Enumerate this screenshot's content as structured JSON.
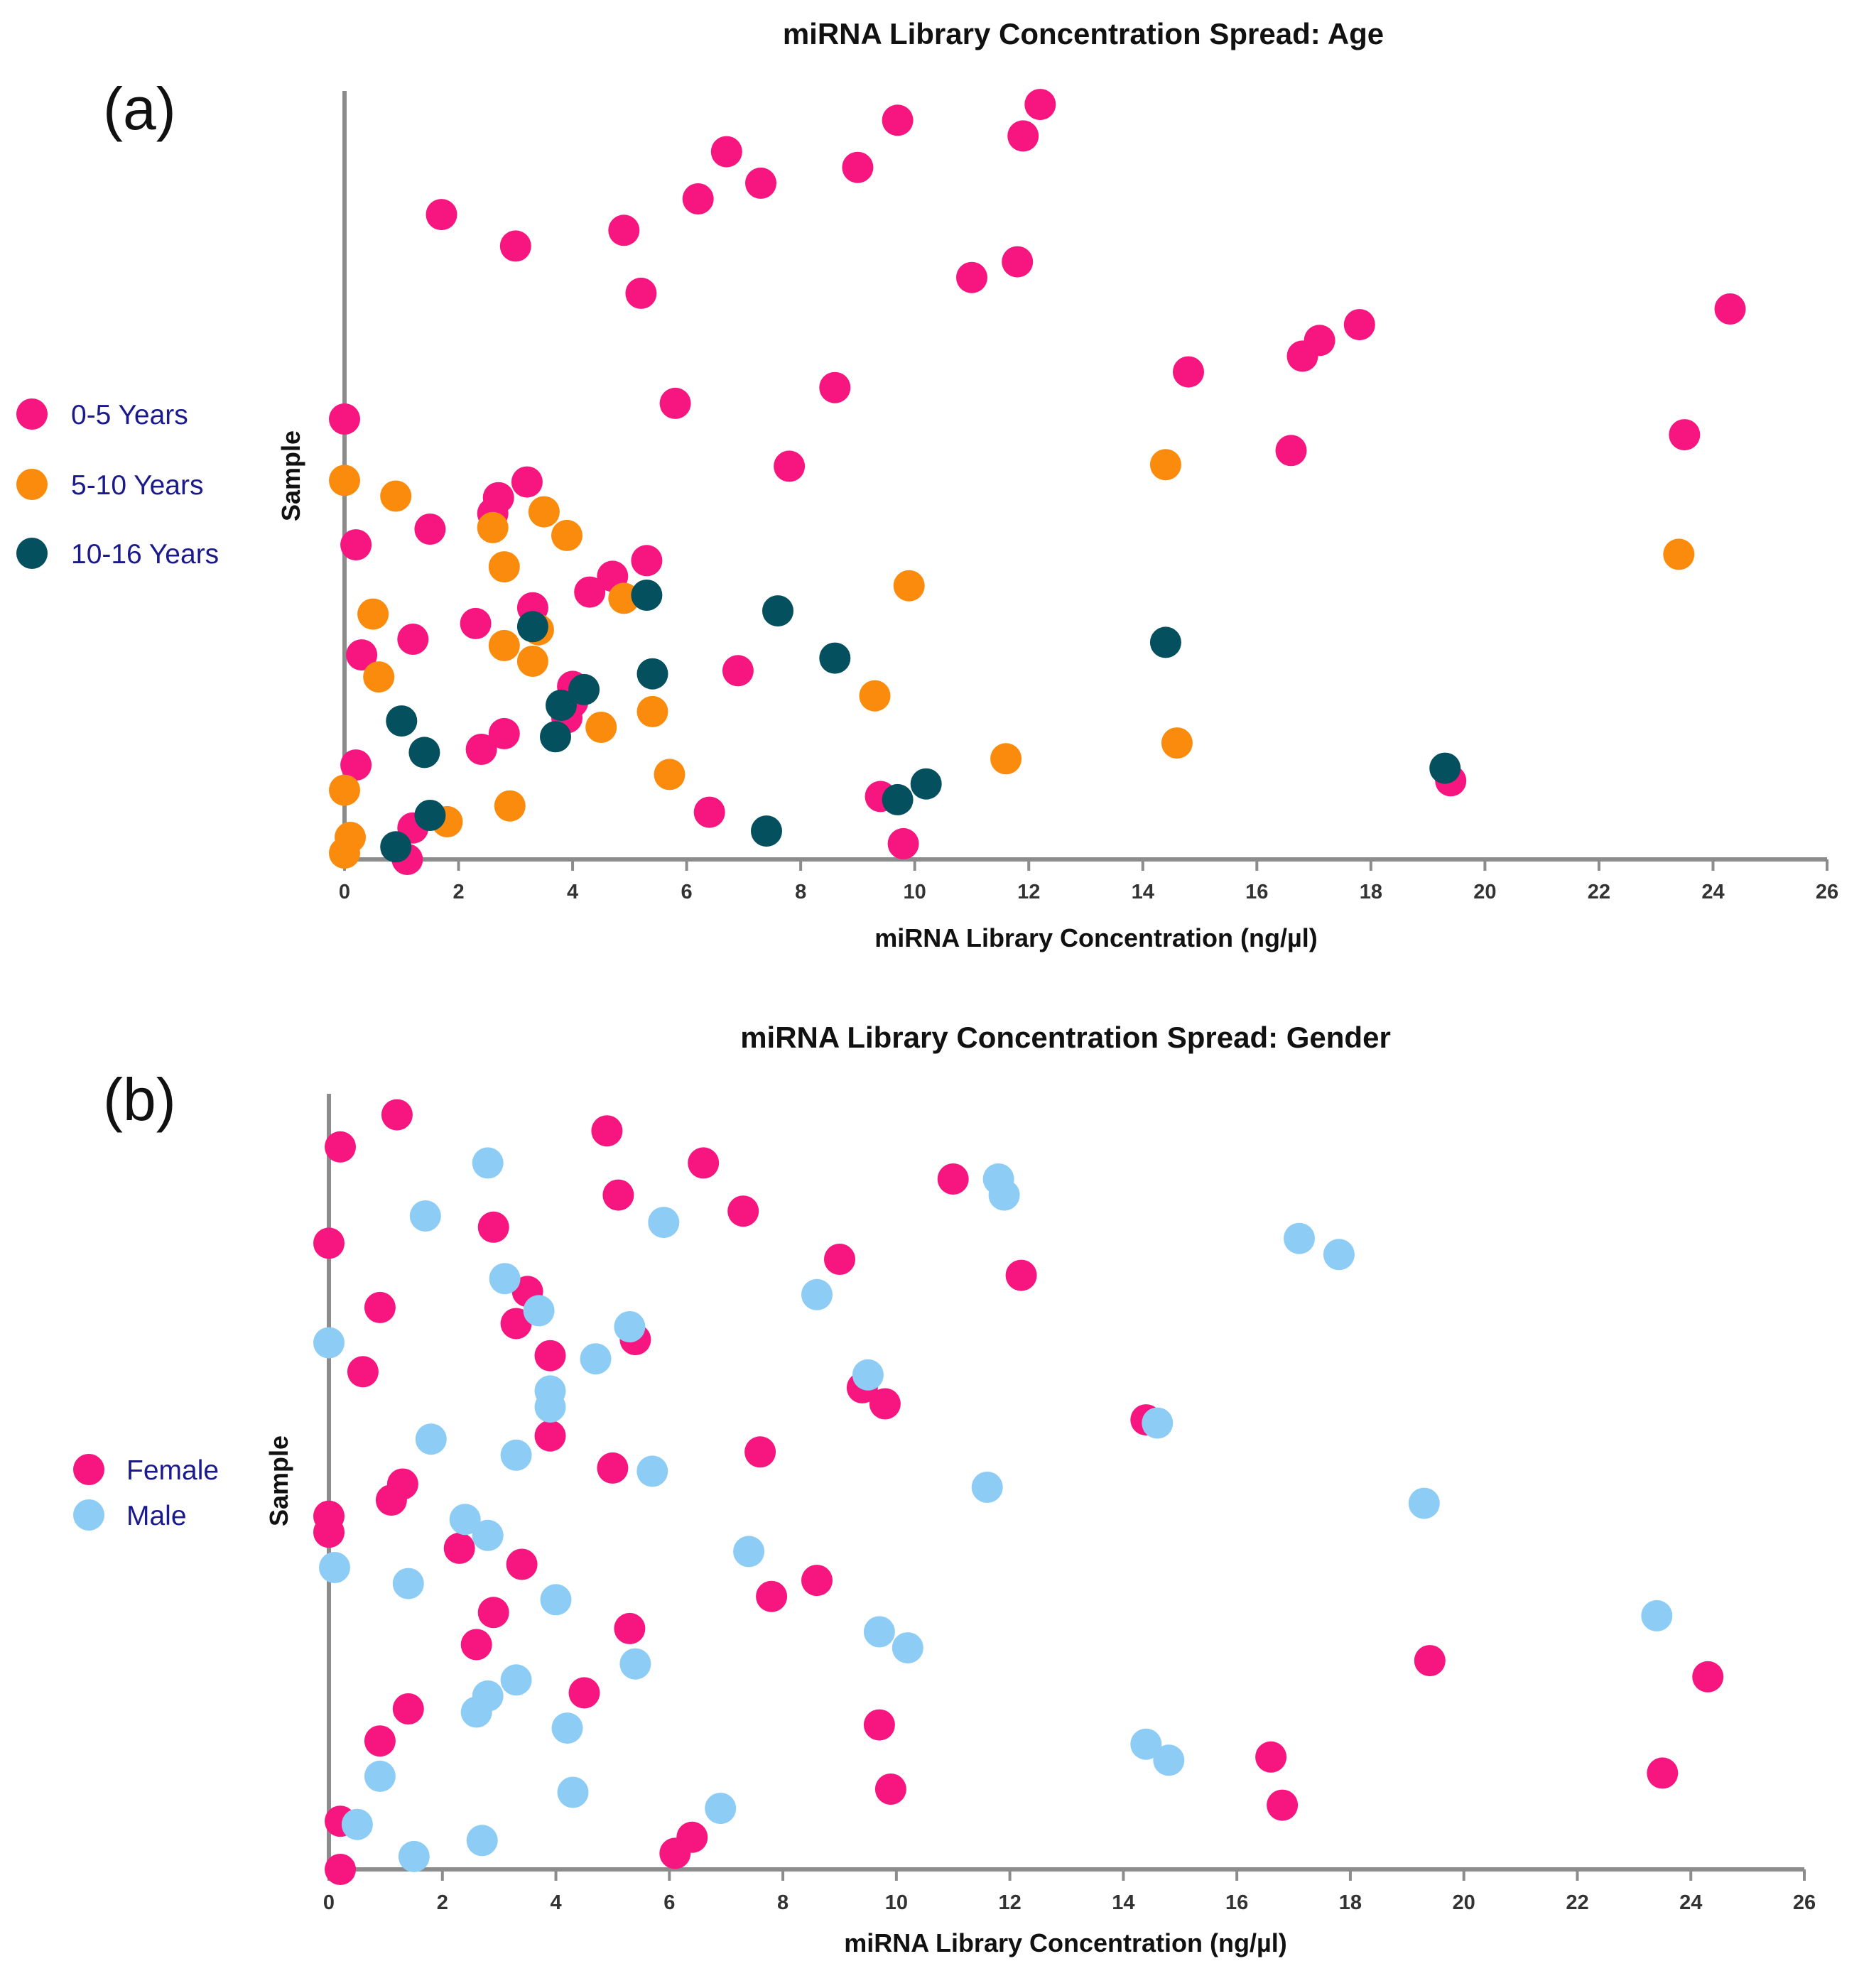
{
  "colors": {
    "age_0_5": "#f7157f",
    "age_5_10": "#fb8b0c",
    "age_10_16": "#05505e",
    "female": "#f7157f",
    "male": "#8dcdf5",
    "axis": "#8c8c8c"
  },
  "chart_data": [
    {
      "type": "scatter",
      "panel_label": "(a)",
      "title": "miRNA Library Concentration Spread: Age",
      "xlabel": "miRNA Library Concentration (ng/µl)",
      "ylabel": "Sample",
      "xlim": [
        0,
        26
      ],
      "ylim": [
        0,
        49
      ],
      "xticks": [
        "0",
        "2",
        "4",
        "6",
        "8",
        "10",
        "12",
        "14",
        "16",
        "18",
        "20",
        "22",
        "24",
        "26"
      ],
      "grid": false,
      "legend_position": "left",
      "series": [
        {
          "name": "0-5 Years",
          "color_key": "age_0_5",
          "points": [
            [
              12.2,
              48
            ],
            [
              9.7,
              47
            ],
            [
              11.9,
              46
            ],
            [
              6.7,
              45
            ],
            [
              9.0,
              44
            ],
            [
              7.3,
              43
            ],
            [
              6.2,
              42
            ],
            [
              1.7,
              41
            ],
            [
              4.9,
              40
            ],
            [
              3.0,
              39
            ],
            [
              11.8,
              38
            ],
            [
              11.0,
              37
            ],
            [
              5.2,
              36
            ],
            [
              24.3,
              35
            ],
            [
              17.8,
              34
            ],
            [
              17.1,
              33
            ],
            [
              16.8,
              32
            ],
            [
              14.8,
              31
            ],
            [
              8.6,
              30
            ],
            [
              5.8,
              29
            ],
            [
              0.0,
              28
            ],
            [
              23.5,
              27
            ],
            [
              16.6,
              26
            ],
            [
              7.8,
              25
            ],
            [
              3.2,
              24
            ],
            [
              2.7,
              23
            ],
            [
              2.6,
              22
            ],
            [
              1.5,
              21
            ],
            [
              0.2,
              20
            ],
            [
              5.3,
              19
            ],
            [
              4.7,
              18
            ],
            [
              4.3,
              17
            ],
            [
              3.3,
              16
            ],
            [
              2.3,
              15
            ],
            [
              1.2,
              14
            ],
            [
              0.3,
              13
            ],
            [
              6.9,
              12
            ],
            [
              4.0,
              11
            ],
            [
              4.0,
              10
            ],
            [
              3.9,
              9
            ],
            [
              2.8,
              8
            ],
            [
              2.4,
              7
            ],
            [
              0.2,
              6
            ],
            [
              19.4,
              5
            ],
            [
              9.4,
              4
            ],
            [
              6.4,
              3
            ],
            [
              1.2,
              2
            ],
            [
              9.8,
              1
            ],
            [
              1.1,
              0
            ]
          ]
        },
        {
          "name": "5-10 Years",
          "color_key": "age_5_10",
          "points": [
            [
              14.4,
              25.1
            ],
            [
              0.0,
              24.1
            ],
            [
              0.9,
              23.1
            ],
            [
              3.5,
              22.1
            ],
            [
              2.6,
              21.1
            ],
            [
              3.9,
              20.6
            ],
            [
              23.4,
              19.4
            ],
            [
              2.8,
              18.6
            ],
            [
              9.9,
              17.4
            ],
            [
              4.9,
              16.6
            ],
            [
              0.5,
              15.6
            ],
            [
              3.4,
              14.6
            ],
            [
              2.8,
              13.6
            ],
            [
              3.3,
              12.6
            ],
            [
              0.6,
              11.6
            ],
            [
              9.3,
              10.4
            ],
            [
              5.4,
              9.4
            ],
            [
              4.5,
              8.4
            ],
            [
              14.6,
              7.4
            ],
            [
              11.6,
              6.4
            ],
            [
              5.7,
              5.4
            ],
            [
              0.0,
              4.4
            ],
            [
              2.9,
              3.4
            ],
            [
              1.8,
              2.4
            ],
            [
              0.1,
              1.4
            ],
            [
              0.0,
              0.4
            ]
          ]
        },
        {
          "name": "10-16 Years",
          "color_key": "age_10_16",
          "points": [
            [
              5.3,
              16.8
            ],
            [
              7.6,
              15.8
            ],
            [
              3.3,
              14.8
            ],
            [
              14.4,
              13.8
            ],
            [
              8.6,
              12.8
            ],
            [
              5.4,
              11.8
            ],
            [
              4.2,
              10.8
            ],
            [
              3.8,
              9.8
            ],
            [
              1.0,
              8.8
            ],
            [
              3.7,
              7.8
            ],
            [
              1.4,
              6.8
            ],
            [
              19.3,
              5.8
            ],
            [
              10.2,
              4.8
            ],
            [
              9.7,
              3.8
            ],
            [
              1.5,
              2.8
            ],
            [
              7.4,
              1.8
            ],
            [
              0.9,
              0.8
            ]
          ]
        }
      ]
    },
    {
      "type": "scatter",
      "panel_label": "(b)",
      "title": "miRNA Library Concentration Spread: Gender",
      "xlabel": "miRNA Library Concentration (ng/µl)",
      "ylabel": "Sample",
      "xlim": [
        0,
        26
      ],
      "ylim": [
        0,
        48
      ],
      "xticks": [
        "0",
        "2",
        "4",
        "6",
        "8",
        "10",
        "12",
        "14",
        "16",
        "18",
        "20",
        "22",
        "24",
        "26"
      ],
      "grid": false,
      "legend_position": "left",
      "series": [
        {
          "name": "Female",
          "color_key": "female",
          "points": [
            [
              1.2,
              47
            ],
            [
              4.9,
              46
            ],
            [
              0.2,
              45
            ],
            [
              6.6,
              44
            ],
            [
              11.0,
              43
            ],
            [
              5.1,
              42
            ],
            [
              7.3,
              41
            ],
            [
              2.9,
              40
            ],
            [
              0.0,
              39
            ],
            [
              9.0,
              38
            ],
            [
              12.2,
              37
            ],
            [
              3.5,
              36
            ],
            [
              0.9,
              35
            ],
            [
              3.3,
              34
            ],
            [
              5.4,
              33
            ],
            [
              3.9,
              32
            ],
            [
              0.6,
              31
            ],
            [
              9.4,
              30
            ],
            [
              9.8,
              29
            ],
            [
              14.4,
              28
            ],
            [
              3.9,
              27
            ],
            [
              7.6,
              26
            ],
            [
              5.0,
              25
            ],
            [
              1.3,
              24
            ],
            [
              1.1,
              23
            ],
            [
              0.0,
              22
            ],
            [
              0.0,
              21
            ],
            [
              2.3,
              20
            ],
            [
              3.4,
              19
            ],
            [
              8.6,
              18
            ],
            [
              7.8,
              17
            ],
            [
              2.9,
              16
            ],
            [
              5.3,
              15
            ],
            [
              2.6,
              14
            ],
            [
              19.4,
              13
            ],
            [
              24.3,
              12
            ],
            [
              4.5,
              11
            ],
            [
              1.4,
              10
            ],
            [
              9.7,
              9
            ],
            [
              0.9,
              8
            ],
            [
              16.6,
              7
            ],
            [
              23.5,
              6
            ],
            [
              9.9,
              5
            ],
            [
              16.8,
              4
            ],
            [
              0.2,
              3
            ],
            [
              6.4,
              2
            ],
            [
              6.1,
              1
            ],
            [
              0.2,
              0
            ]
          ]
        },
        {
          "name": "Male",
          "color_key": "male",
          "points": [
            [
              2.8,
              44
            ],
            [
              11.8,
              43
            ],
            [
              11.9,
              42
            ],
            [
              1.7,
              40.7
            ],
            [
              5.9,
              40.3
            ],
            [
              17.1,
              39.3
            ],
            [
              17.8,
              38.3
            ],
            [
              3.1,
              36.8
            ],
            [
              8.6,
              35.8
            ],
            [
              3.7,
              34.8
            ],
            [
              5.3,
              33.8
            ],
            [
              0.0,
              32.8
            ],
            [
              4.7,
              31.8
            ],
            [
              9.5,
              30.8
            ],
            [
              3.9,
              29.8
            ],
            [
              3.9,
              28.8
            ],
            [
              14.6,
              27.8
            ],
            [
              1.8,
              26.8
            ],
            [
              3.3,
              25.8
            ],
            [
              5.7,
              24.8
            ],
            [
              11.6,
              23.8
            ],
            [
              19.3,
              22.8
            ],
            [
              2.4,
              21.8
            ],
            [
              2.8,
              20.8
            ],
            [
              7.4,
              19.8
            ],
            [
              0.1,
              18.8
            ],
            [
              1.4,
              17.8
            ],
            [
              4.0,
              16.8
            ],
            [
              23.4,
              15.8
            ],
            [
              9.7,
              14.8
            ],
            [
              10.2,
              13.8
            ],
            [
              5.4,
              12.8
            ],
            [
              3.3,
              11.8
            ],
            [
              2.8,
              10.8
            ],
            [
              2.6,
              9.8
            ],
            [
              4.2,
              8.8
            ],
            [
              14.4,
              7.8
            ],
            [
              14.8,
              6.8
            ],
            [
              0.9,
              5.8
            ],
            [
              4.3,
              4.8
            ],
            [
              6.9,
              3.8
            ],
            [
              0.5,
              2.8
            ],
            [
              2.7,
              1.8
            ],
            [
              1.5,
              0.8
            ]
          ]
        }
      ]
    }
  ]
}
